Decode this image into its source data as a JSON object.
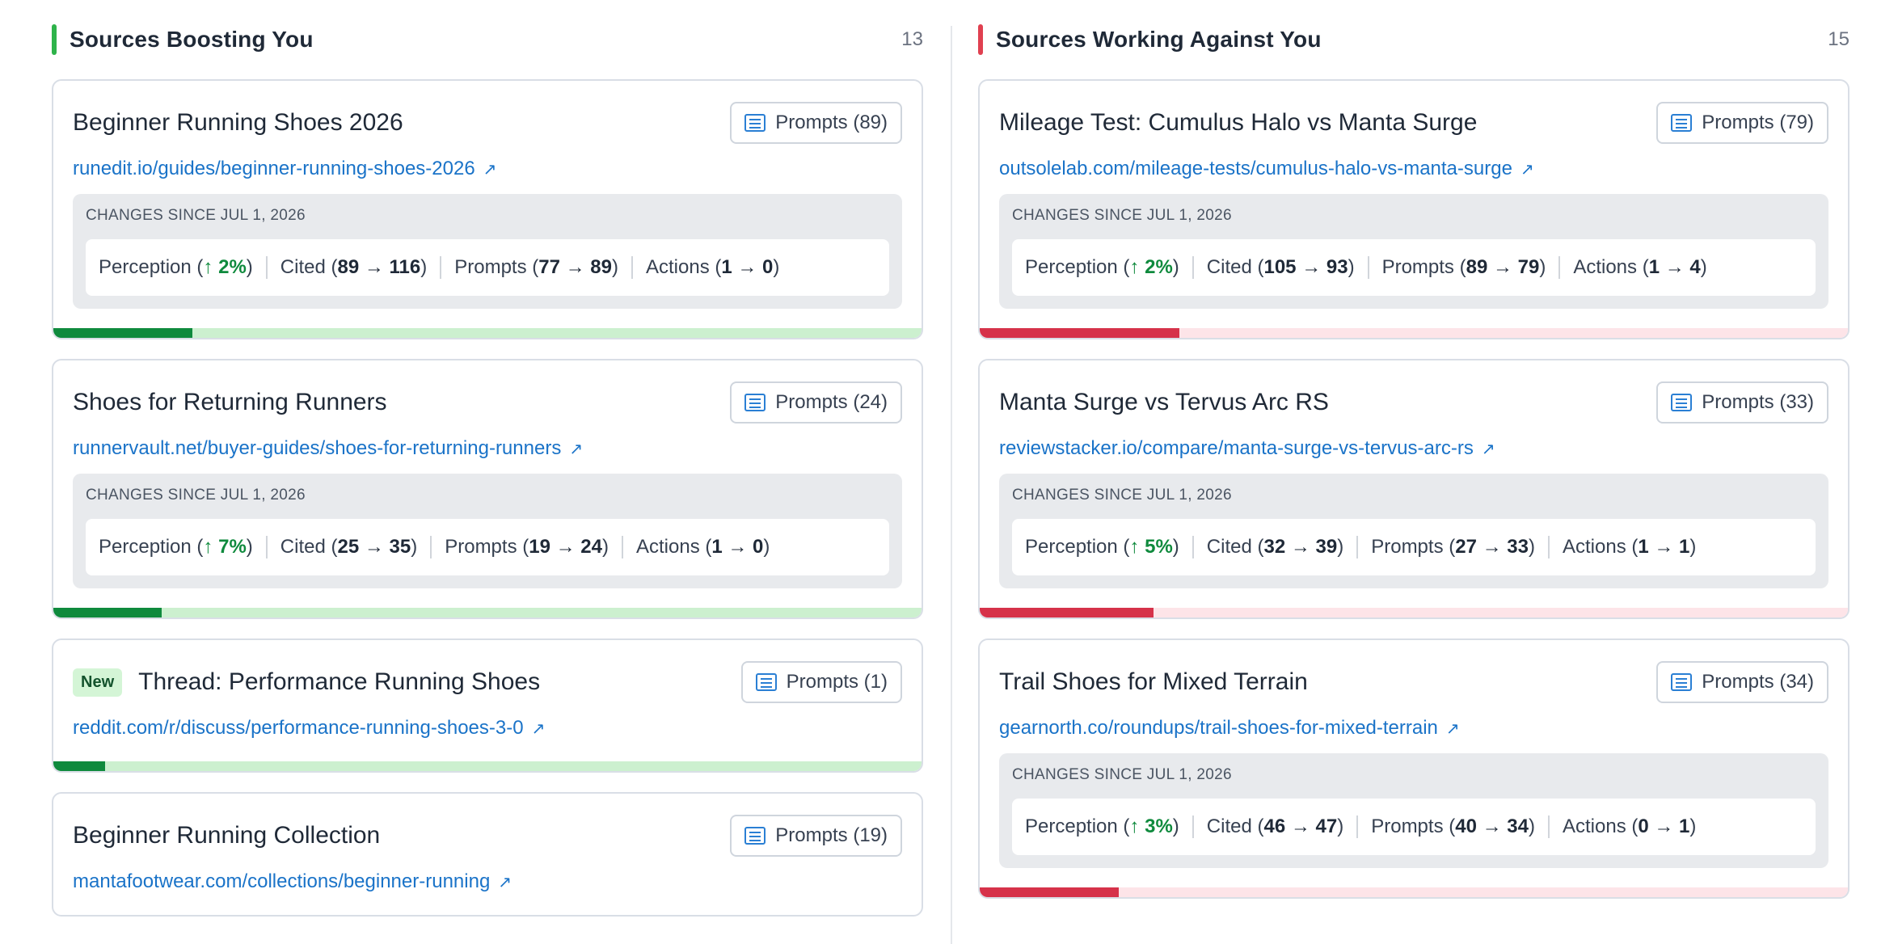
{
  "changes_label": "CHANGES SINCE JUL 1, 2026",
  "colors": {
    "boost": "#2eb34a",
    "boost_fill": "#0f8a3d",
    "boost_track": "#ccf0cf",
    "against": "#e04050",
    "against_fill": "#d6324a",
    "against_track": "#fde4e8"
  },
  "left": {
    "title": "Sources Boosting You",
    "count": "13",
    "cards": [
      {
        "title": "Beginner Running Shoes 2026",
        "prompts": "Prompts (89)",
        "url": "runedit.io/guides/beginner-running-shoes-2026",
        "perception": "2%",
        "cited": "89 → 116",
        "prompts_change": "77 → 89",
        "actions": "1 → 0",
        "progress": 0.16
      },
      {
        "title": "Shoes for Returning Runners",
        "prompts": "Prompts (24)",
        "url": "runnervault.net/buyer-guides/shoes-for-returning-runners",
        "perception": "7%",
        "cited": "25 → 35",
        "prompts_change": "19 → 24",
        "actions": "1 → 0",
        "progress": 0.125
      },
      {
        "badge": "New",
        "title": "Thread: Performance Running Shoes",
        "prompts": "Prompts (1)",
        "url": "reddit.com/r/discuss/performance-running-shoes-3-0",
        "progress": 0.06
      },
      {
        "title": "Beginner Running Collection",
        "prompts": "Prompts (19)",
        "url": "mantafootwear.com/collections/beginner-running"
      }
    ]
  },
  "right": {
    "title": "Sources Working Against You",
    "count": "15",
    "cards": [
      {
        "title": "Mileage Test: Cumulus Halo vs Manta Surge",
        "prompts": "Prompts (79)",
        "url": "outsolelab.com/mileage-tests/cumulus-halo-vs-manta-surge",
        "perception": "2%",
        "cited": "105 → 93",
        "prompts_change": "89 → 79",
        "actions": "1 → 4",
        "progress": 0.23
      },
      {
        "title": "Manta Surge vs Tervus Arc RS",
        "prompts": "Prompts (33)",
        "url": "reviewstacker.io/compare/manta-surge-vs-tervus-arc-rs",
        "perception": "5%",
        "cited": "32 → 39",
        "prompts_change": "27 → 33",
        "actions": "1 → 1",
        "progress": 0.2
      },
      {
        "title": "Trail Shoes for Mixed Terrain",
        "prompts": "Prompts (34)",
        "url": "gearnorth.co/roundups/trail-shoes-for-mixed-terrain",
        "perception": "3%",
        "cited": "46 → 47",
        "prompts_change": "40 → 34",
        "actions": "0 → 1",
        "progress": 0.16
      }
    ]
  },
  "labels": {
    "perception": "Perception",
    "cited": "Cited",
    "prompts": "Prompts",
    "actions": "Actions",
    "up_arrow": "↑",
    "ext_arrow": "↗"
  }
}
